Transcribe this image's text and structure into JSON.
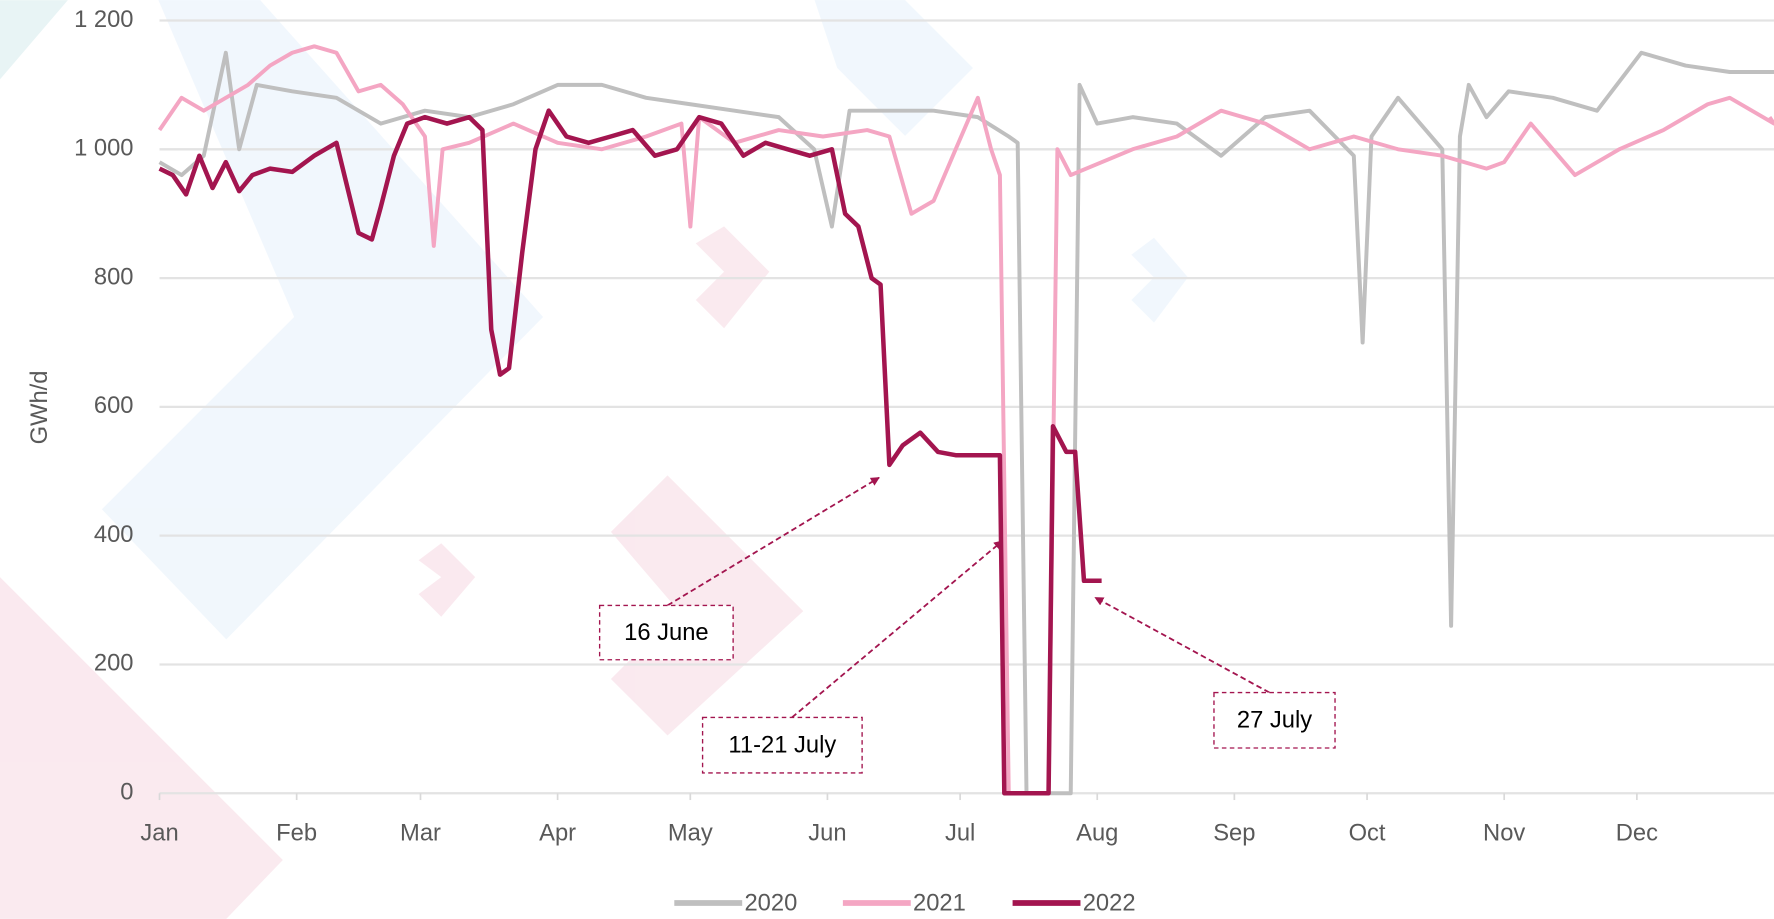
{
  "chart_data": {
    "type": "line",
    "y_label": "GWh/d",
    "xlim": [
      0,
      365
    ],
    "ylim": [
      0,
      1200
    ],
    "xticks": [
      {
        "value": 0,
        "label": "Jan"
      },
      {
        "value": 31,
        "label": "Feb"
      },
      {
        "value": 59,
        "label": "Mar"
      },
      {
        "value": 90,
        "label": "Apr"
      },
      {
        "value": 120,
        "label": "May"
      },
      {
        "value": 151,
        "label": "Jun"
      },
      {
        "value": 181,
        "label": "Jul"
      },
      {
        "value": 212,
        "label": "Aug"
      },
      {
        "value": 243,
        "label": "Sep"
      },
      {
        "value": 273,
        "label": "Oct"
      },
      {
        "value": 304,
        "label": "Nov"
      },
      {
        "value": 334,
        "label": "Dec"
      }
    ],
    "yticks": [
      0,
      200,
      400,
      600,
      800,
      {
        "value": 1000,
        "label": "1 000"
      },
      {
        "value": 1200,
        "label": "1 200"
      }
    ],
    "grid": true,
    "legend": "bottom",
    "series": [
      {
        "name": "2020",
        "color": "#bfbfbf",
        "x": [
          0,
          5,
          10,
          15,
          18,
          22,
          30,
          40,
          50,
          60,
          70,
          80,
          90,
          100,
          110,
          120,
          130,
          140,
          148,
          152,
          156,
          165,
          175,
          185,
          192,
          194,
          196,
          206,
          208,
          212,
          220,
          230,
          240,
          250,
          260,
          270,
          272,
          274,
          280,
          290,
          292,
          294,
          296,
          300,
          305,
          315,
          325,
          335,
          345,
          355,
          365
        ],
        "values": [
          980,
          960,
          990,
          1150,
          1000,
          1100,
          1090,
          1080,
          1040,
          1060,
          1050,
          1070,
          1100,
          1100,
          1080,
          1070,
          1060,
          1050,
          1000,
          880,
          1060,
          1060,
          1060,
          1050,
          1020,
          1010,
          0,
          0,
          1100,
          1040,
          1050,
          1040,
          990,
          1050,
          1060,
          990,
          700,
          1020,
          1080,
          1000,
          260,
          1020,
          1100,
          1050,
          1090,
          1080,
          1060,
          1150,
          1130,
          1120,
          1120
        ]
      },
      {
        "name": "2021",
        "color": "#f4a6c3",
        "x": [
          0,
          5,
          10,
          15,
          20,
          25,
          30,
          35,
          40,
          45,
          50,
          55,
          60,
          62,
          64,
          70,
          80,
          90,
          100,
          110,
          118,
          120,
          122,
          130,
          140,
          150,
          160,
          165,
          170,
          175,
          180,
          185,
          188,
          190,
          192,
          201,
          203,
          206,
          220,
          230,
          240,
          250,
          260,
          270,
          280,
          290,
          300,
          304,
          310,
          320,
          330,
          340,
          350,
          355,
          360,
          365,
          364
        ],
        "values": [
          1030,
          1080,
          1060,
          1080,
          1100,
          1130,
          1150,
          1160,
          1150,
          1090,
          1100,
          1070,
          1020,
          850,
          1000,
          1010,
          1040,
          1010,
          1000,
          1020,
          1040,
          880,
          1050,
          1010,
          1030,
          1020,
          1030,
          1020,
          900,
          920,
          1000,
          1080,
          1000,
          960,
          0,
          0,
          1000,
          960,
          1000,
          1020,
          1060,
          1040,
          1000,
          1020,
          1000,
          990,
          970,
          980,
          1040,
          960,
          1000,
          1030,
          1070,
          1080,
          1060,
          1040,
          1050
        ]
      },
      {
        "name": "2022",
        "color": "#a3154f",
        "x": [
          0,
          3,
          6,
          9,
          12,
          15,
          18,
          21,
          25,
          30,
          35,
          40,
          45,
          48,
          50,
          53,
          56,
          60,
          65,
          70,
          73,
          75,
          77,
          79,
          82,
          85,
          88,
          92,
          97,
          102,
          107,
          112,
          117,
          122,
          127,
          132,
          137,
          142,
          147,
          152,
          155,
          158,
          161,
          163,
          165,
          168,
          172,
          176,
          180,
          185,
          190,
          191,
          201,
          202,
          205,
          207,
          209,
          213
        ],
        "values": [
          970,
          960,
          930,
          990,
          940,
          980,
          935,
          960,
          970,
          965,
          990,
          1010,
          870,
          860,
          910,
          990,
          1040,
          1050,
          1040,
          1050,
          1030,
          720,
          650,
          660,
          840,
          1000,
          1060,
          1020,
          1010,
          1020,
          1030,
          990,
          1000,
          1050,
          1040,
          990,
          1010,
          1000,
          990,
          1000,
          900,
          880,
          800,
          790,
          510,
          540,
          560,
          530,
          525,
          525,
          525,
          0,
          0,
          570,
          530,
          530,
          330,
          330
        ]
      }
    ],
    "annotations": [
      {
        "text": "16 June"
      },
      {
        "text": "11-21 July"
      },
      {
        "text": "27 July"
      }
    ]
  }
}
